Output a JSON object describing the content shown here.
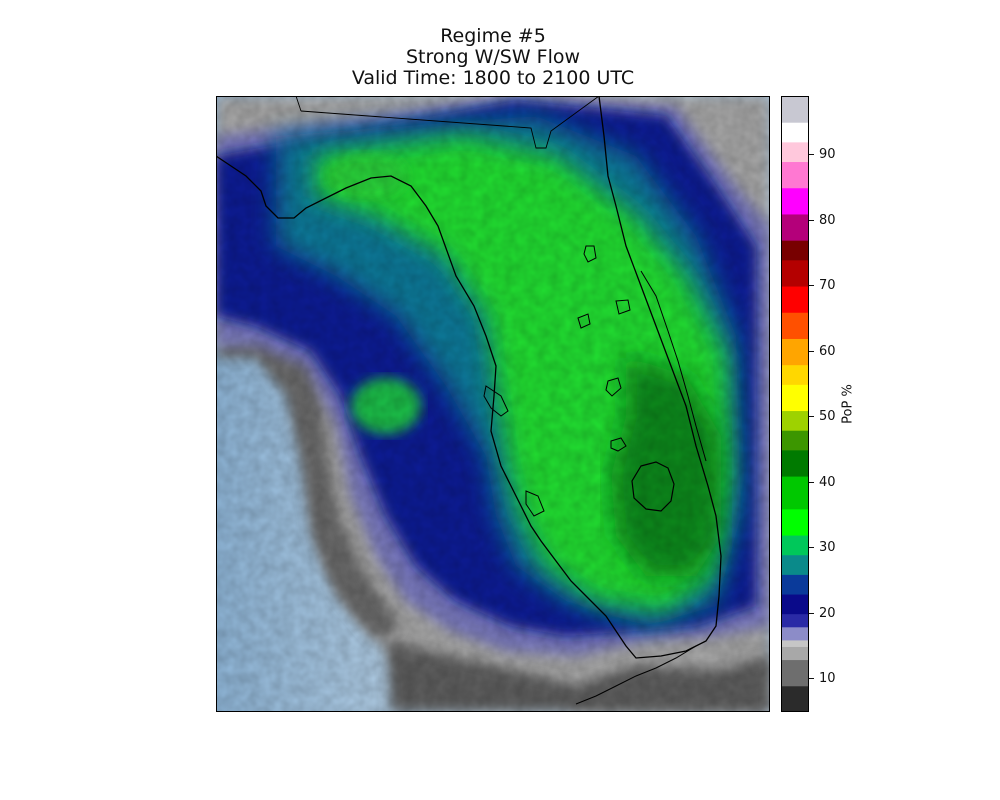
{
  "title": {
    "line1": "Regime #5",
    "line2": "Strong W/SW Flow",
    "line3": "Valid Time: 1800 to 2100 UTC"
  },
  "colorbar": {
    "label": "PoP %",
    "min": 5,
    "max": 99,
    "ticks": [
      {
        "value": 10,
        "label": "10"
      },
      {
        "value": 20,
        "label": "20"
      },
      {
        "value": 30,
        "label": "30"
      },
      {
        "value": 40,
        "label": "40"
      },
      {
        "value": 50,
        "label": "50"
      },
      {
        "value": 60,
        "label": "60"
      },
      {
        "value": 70,
        "label": "70"
      },
      {
        "value": 80,
        "label": "80"
      },
      {
        "value": 90,
        "label": "90"
      }
    ],
    "stops": [
      {
        "value": 5,
        "color": "#2b2b2b"
      },
      {
        "value": 9,
        "color": "#6e6e6e"
      },
      {
        "value": 13,
        "color": "#a8a8a8"
      },
      {
        "value": 15,
        "color": "#c6c6c6"
      },
      {
        "value": 16,
        "color": "#8c8cc8"
      },
      {
        "value": 18,
        "color": "#2a2aa6"
      },
      {
        "value": 20,
        "color": "#0a0a8a"
      },
      {
        "value": 23,
        "color": "#0a3a9a"
      },
      {
        "value": 26,
        "color": "#0a8a8a"
      },
      {
        "value": 29,
        "color": "#00c85a"
      },
      {
        "value": 32,
        "color": "#00ff00"
      },
      {
        "value": 36,
        "color": "#00c800"
      },
      {
        "value": 41,
        "color": "#007a00"
      },
      {
        "value": 45,
        "color": "#3c9600"
      },
      {
        "value": 48,
        "color": "#9ed200"
      },
      {
        "value": 51,
        "color": "#ffff00"
      },
      {
        "value": 55,
        "color": "#ffd700"
      },
      {
        "value": 58,
        "color": "#ffa500"
      },
      {
        "value": 62,
        "color": "#ff5000"
      },
      {
        "value": 66,
        "color": "#ff0000"
      },
      {
        "value": 70,
        "color": "#b40000"
      },
      {
        "value": 74,
        "color": "#780000"
      },
      {
        "value": 77,
        "color": "#b4007a"
      },
      {
        "value": 81,
        "color": "#ff00ff"
      },
      {
        "value": 85,
        "color": "#ff78d2"
      },
      {
        "value": 89,
        "color": "#ffc8dc"
      },
      {
        "value": 92,
        "color": "#ffffff"
      },
      {
        "value": 95,
        "color": "#c8c8d2"
      },
      {
        "value": 99,
        "color": "#646e7a"
      }
    ]
  },
  "colors": {
    "ocean_light": "#c6dcee",
    "ocean_dark": "#8fb6d8",
    "coastline": "#000000"
  }
}
